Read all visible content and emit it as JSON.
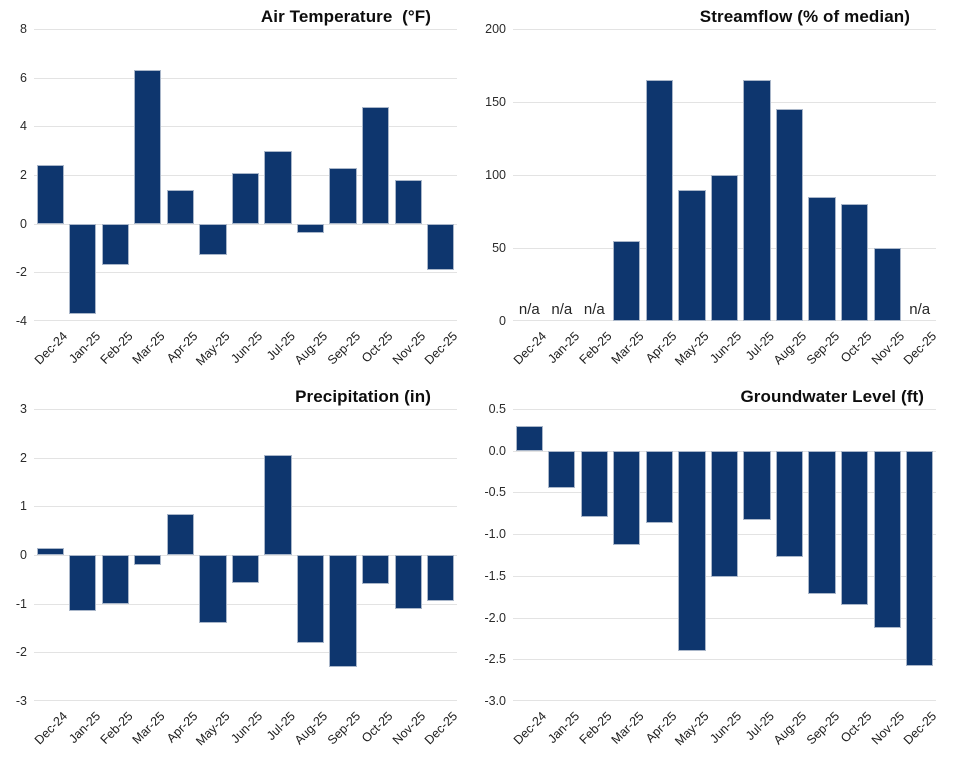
{
  "colors": {
    "bar": "#0e366e",
    "bar_border": "#a9b6c9",
    "gridline": "#e3e3e3",
    "background": "#ffffff",
    "title_text": "#0d0d0d",
    "tick_text": "#1c1c1c"
  },
  "chart_data": [
    {
      "id": "air-temperature",
      "type": "bar",
      "title": "Air Temperature  (°F)",
      "categories": [
        "Dec-24",
        "Jan-25",
        "Feb-25",
        "Mar-25",
        "Apr-25",
        "May-25",
        "Jun-25",
        "Jul-25",
        "Aug-25",
        "Sep-25",
        "Oct-25",
        "Nov-25",
        "Dec-25"
      ],
      "values": [
        2.4,
        -3.7,
        -1.7,
        6.3,
        1.4,
        -1.3,
        2.1,
        3.0,
        -0.4,
        2.3,
        4.8,
        1.8,
        -1.9
      ],
      "ylim": [
        -4,
        8
      ],
      "yticks": [
        8,
        6,
        4,
        2,
        0,
        -2,
        -4
      ],
      "ytick_labels": [
        "8",
        "6",
        "4",
        "2",
        "0",
        "-2",
        "-4"
      ],
      "grid": true,
      "legend": "none"
    },
    {
      "id": "streamflow",
      "type": "bar",
      "title": "Streamflow (% of median)",
      "categories": [
        "Dec-24",
        "Jan-25",
        "Feb-25",
        "Mar-25",
        "Apr-25",
        "May-25",
        "Jun-25",
        "Jul-25",
        "Aug-25",
        "Sep-25",
        "Oct-25",
        "Nov-25",
        "Dec-25"
      ],
      "values": [
        null,
        null,
        null,
        55,
        165,
        90,
        100,
        165,
        145,
        85,
        80,
        50,
        null
      ],
      "na_label": "n/a",
      "ylim": [
        0,
        200
      ],
      "yticks": [
        200,
        150,
        100,
        50,
        0
      ],
      "ytick_labels": [
        "200",
        "150",
        "100",
        "50",
        "0"
      ],
      "grid": true,
      "legend": "none"
    },
    {
      "id": "precipitation",
      "type": "bar",
      "title": "Precipitation (in)",
      "categories": [
        "Dec-24",
        "Jan-25",
        "Feb-25",
        "Mar-25",
        "Apr-25",
        "May-25",
        "Jun-25",
        "Jul-25",
        "Aug-25",
        "Sep-25",
        "Oct-25",
        "Nov-25",
        "Dec-25"
      ],
      "values": [
        0.15,
        -1.15,
        -1.0,
        -0.2,
        0.85,
        -1.4,
        -0.57,
        2.05,
        -1.8,
        -2.3,
        -0.6,
        -1.1,
        -0.95
      ],
      "ylim": [
        -3,
        3
      ],
      "yticks": [
        3,
        2,
        1,
        0,
        -1,
        -2,
        -3
      ],
      "ytick_labels": [
        "3",
        "2",
        "1",
        "0",
        "-1",
        "-2",
        "-3"
      ],
      "grid": true,
      "legend": "none"
    },
    {
      "id": "groundwater-level",
      "type": "bar",
      "title": "Groundwater Level (ft)",
      "categories": [
        "Dec-24",
        "Jan-25",
        "Feb-25",
        "Mar-25",
        "Apr-25",
        "May-25",
        "Jun-25",
        "Jul-25",
        "Aug-25",
        "Sep-25",
        "Oct-25",
        "Nov-25",
        "Dec-25"
      ],
      "values": [
        0.3,
        -0.45,
        -0.8,
        -1.13,
        -0.87,
        -2.4,
        -1.52,
        -0.83,
        -1.27,
        -1.72,
        -1.85,
        -2.12,
        -2.58
      ],
      "ylim": [
        -3,
        0.5
      ],
      "yticks": [
        0.5,
        0,
        -0.5,
        -1,
        -1.5,
        -2,
        -2.5,
        -3
      ],
      "ytick_labels": [
        "0.5",
        "0.0",
        "-0.5",
        "-1.0",
        "-1.5",
        "-2.0",
        "-2.5",
        "-3.0"
      ],
      "grid": true,
      "legend": "none"
    }
  ]
}
